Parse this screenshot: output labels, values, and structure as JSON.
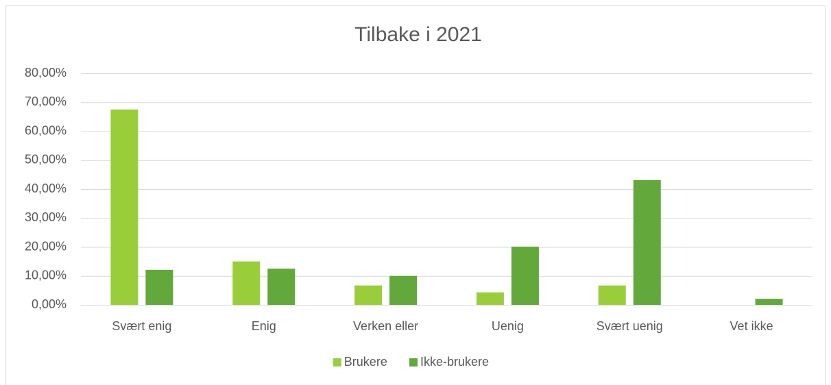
{
  "chart_data": {
    "type": "bar",
    "title": "Tilbake i 2021",
    "categories": [
      "Svært enig",
      "Enig",
      "Verken eller",
      "Uenig",
      "Svært uenig",
      "Vet ikke"
    ],
    "series": [
      {
        "name": "Brukere",
        "color": "#9acd3a",
        "values": [
          67.5,
          15,
          6.7,
          4.3,
          6.7,
          0
        ]
      },
      {
        "name": "Ikke-brukere",
        "color": "#62a83a",
        "values": [
          12.1,
          12.5,
          10,
          20.1,
          43.1,
          2.1
        ]
      }
    ],
    "ylim": [
      0,
      80
    ],
    "yticks": [
      {
        "value": 0,
        "label": "0,00%"
      },
      {
        "value": 10,
        "label": "10,00%"
      },
      {
        "value": 20,
        "label": "20,00%"
      },
      {
        "value": 30,
        "label": "30,00%"
      },
      {
        "value": 40,
        "label": "40,00%"
      },
      {
        "value": 50,
        "label": "50,00%"
      },
      {
        "value": 60,
        "label": "60,00%"
      },
      {
        "value": 70,
        "label": "70,00%"
      },
      {
        "value": 80,
        "label": "80,00%"
      }
    ],
    "grid": true,
    "legend": "bottom"
  }
}
